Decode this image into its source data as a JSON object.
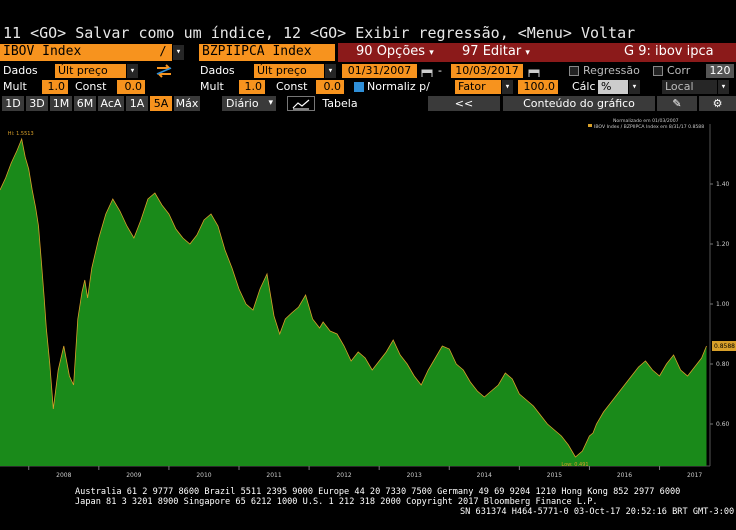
{
  "command_line": "11 <GO> Salvar como um índice, 12 <GO> Exibir regressão, <Menu> Voltar",
  "row1": {
    "security1": "IBOV Index",
    "divide_sign": "/",
    "security2": "BZPIIPCA Index",
    "options_num": "90",
    "options_label": "Opções",
    "edit_num": "97",
    "edit_label": "Editar",
    "graph_id": "G 9: ibov ipca"
  },
  "row2": {
    "data_label1": "Dados",
    "data_value1": "Últ preço",
    "data_label2": "Dados",
    "data_value2": "Últ preço",
    "start_date": "01/31/2007",
    "end_date": "10/03/2017",
    "regression_label": "Regressão",
    "corr_label": "Corr",
    "corr_value": "120"
  },
  "row3": {
    "mult_label1": "Mult",
    "mult_value1": "1.0",
    "const_label1": "Const",
    "const_value1": "0.0",
    "mult_label2": "Mult",
    "mult_value2": "1.0",
    "const_label2": "Const",
    "const_value2": "0.0",
    "normalize_label": "Normaliz p/",
    "factor_label": "Fator",
    "factor_value": "100.0",
    "calc_label": "Cálc",
    "calc_value": "%",
    "local_value": "Local"
  },
  "row4": {
    "periods": [
      "1D",
      "3D",
      "1M",
      "6M",
      "AcA",
      "1A",
      "5A",
      "Máx"
    ],
    "active_period": "5A",
    "frequency": "Diário",
    "table_label": "Tabela",
    "nav_back": "<<",
    "chart_content": "Conteúdo do gráfico"
  },
  "chart_data": {
    "type": "area",
    "legend": [
      "Normalizado em 01/03/2007",
      "IBOV Index / BZPIIPCA Index em 8/31/17 0.8588"
    ],
    "x_ticks": [
      "2008",
      "2009",
      "2010",
      "2011",
      "2012",
      "2013",
      "2014",
      "2015",
      "2016",
      "2017"
    ],
    "y_ticks": [
      "1.40",
      "1.20",
      "1.00",
      "0.80",
      "0.60"
    ],
    "ylim": [
      0.46,
      1.6
    ],
    "last_value_label": "0.8588",
    "hi_label": "Hi: 1.5513",
    "low_label": "Low: 0.491",
    "series": [
      {
        "x": [
          2007.59,
          2007.67,
          2007.75,
          2007.83,
          2007.9,
          2007.95,
          2008.0,
          2008.05,
          2008.1,
          2008.14,
          2008.18,
          2008.22,
          2008.25,
          2008.3,
          2008.35,
          2008.42,
          2008.5,
          2008.58,
          2008.64,
          2008.7,
          2008.76,
          2008.8,
          2008.84,
          2008.9,
          2009.0,
          2009.1,
          2009.2,
          2009.3,
          2009.4,
          2009.5,
          2009.6,
          2009.7,
          2009.8,
          2009.9,
          2010.0,
          2010.1,
          2010.2,
          2010.3,
          2010.4,
          2010.5,
          2010.6,
          2010.7,
          2010.8,
          2010.9,
          2011.0,
          2011.1,
          2011.2,
          2011.3,
          2011.4,
          2011.5,
          2011.58,
          2011.66,
          2011.75,
          2011.85,
          2011.95,
          2012.05,
          2012.15,
          2012.2,
          2012.3,
          2012.4,
          2012.5,
          2012.6,
          2012.7,
          2012.8,
          2012.9,
          2013.0,
          2013.1,
          2013.2,
          2013.3,
          2013.4,
          2013.5,
          2013.6,
          2013.7,
          2013.8,
          2013.9,
          2014.0,
          2014.1,
          2014.2,
          2014.3,
          2014.4,
          2014.5,
          2014.6,
          2014.7,
          2014.8,
          2014.9,
          2015.0,
          2015.1,
          2015.2,
          2015.3,
          2015.4,
          2015.5,
          2015.6,
          2015.7,
          2015.8,
          2015.9,
          2016.0,
          2016.05,
          2016.1,
          2016.2,
          2016.3,
          2016.4,
          2016.5,
          2016.6,
          2016.7,
          2016.8,
          2016.9,
          2017.0,
          2017.1,
          2017.2,
          2017.3,
          2017.4,
          2017.5,
          2017.6,
          2017.67
        ],
        "y": [
          1.38,
          1.42,
          1.47,
          1.51,
          1.55,
          1.49,
          1.45,
          1.38,
          1.32,
          1.26,
          1.14,
          1.02,
          0.92,
          0.8,
          0.65,
          0.78,
          0.86,
          0.76,
          0.73,
          0.95,
          1.04,
          1.08,
          1.02,
          1.12,
          1.22,
          1.3,
          1.35,
          1.31,
          1.26,
          1.22,
          1.28,
          1.35,
          1.37,
          1.33,
          1.3,
          1.25,
          1.22,
          1.2,
          1.23,
          1.28,
          1.3,
          1.26,
          1.18,
          1.12,
          1.05,
          1.0,
          0.98,
          1.05,
          1.1,
          0.96,
          0.9,
          0.95,
          0.97,
          0.99,
          1.03,
          0.95,
          0.92,
          0.94,
          0.91,
          0.9,
          0.86,
          0.81,
          0.84,
          0.82,
          0.78,
          0.81,
          0.84,
          0.88,
          0.83,
          0.8,
          0.76,
          0.73,
          0.78,
          0.82,
          0.86,
          0.85,
          0.8,
          0.78,
          0.74,
          0.71,
          0.69,
          0.71,
          0.73,
          0.77,
          0.75,
          0.7,
          0.68,
          0.66,
          0.63,
          0.6,
          0.58,
          0.56,
          0.53,
          0.49,
          0.51,
          0.56,
          0.57,
          0.6,
          0.64,
          0.67,
          0.7,
          0.73,
          0.76,
          0.79,
          0.81,
          0.78,
          0.76,
          0.8,
          0.83,
          0.78,
          0.76,
          0.79,
          0.82,
          0.86
        ]
      }
    ]
  },
  "footer": {
    "line1": "Australia 61 2 9777 8600 Brazil 5511 2395 9000 Europe 44 20 7330 7500 Germany 49 69 9204 1210 Hong Kong 852 2977 6000",
    "line2": "Japan 81 3 3201 8900       Singapore 65 6212 1000       U.S. 1 212 318 2000         Copyright 2017 Bloomberg Finance L.P.",
    "line3": "SN 631374 H464-5771-0 03-Oct-17 20:52:16 BRT  GMT-3:00"
  },
  "colors": {
    "bloomberg_orange": "#f7931e",
    "series_fill": "#1a8a1a",
    "series_line": "#d8a02a",
    "header_red": "#8b1a1a"
  }
}
